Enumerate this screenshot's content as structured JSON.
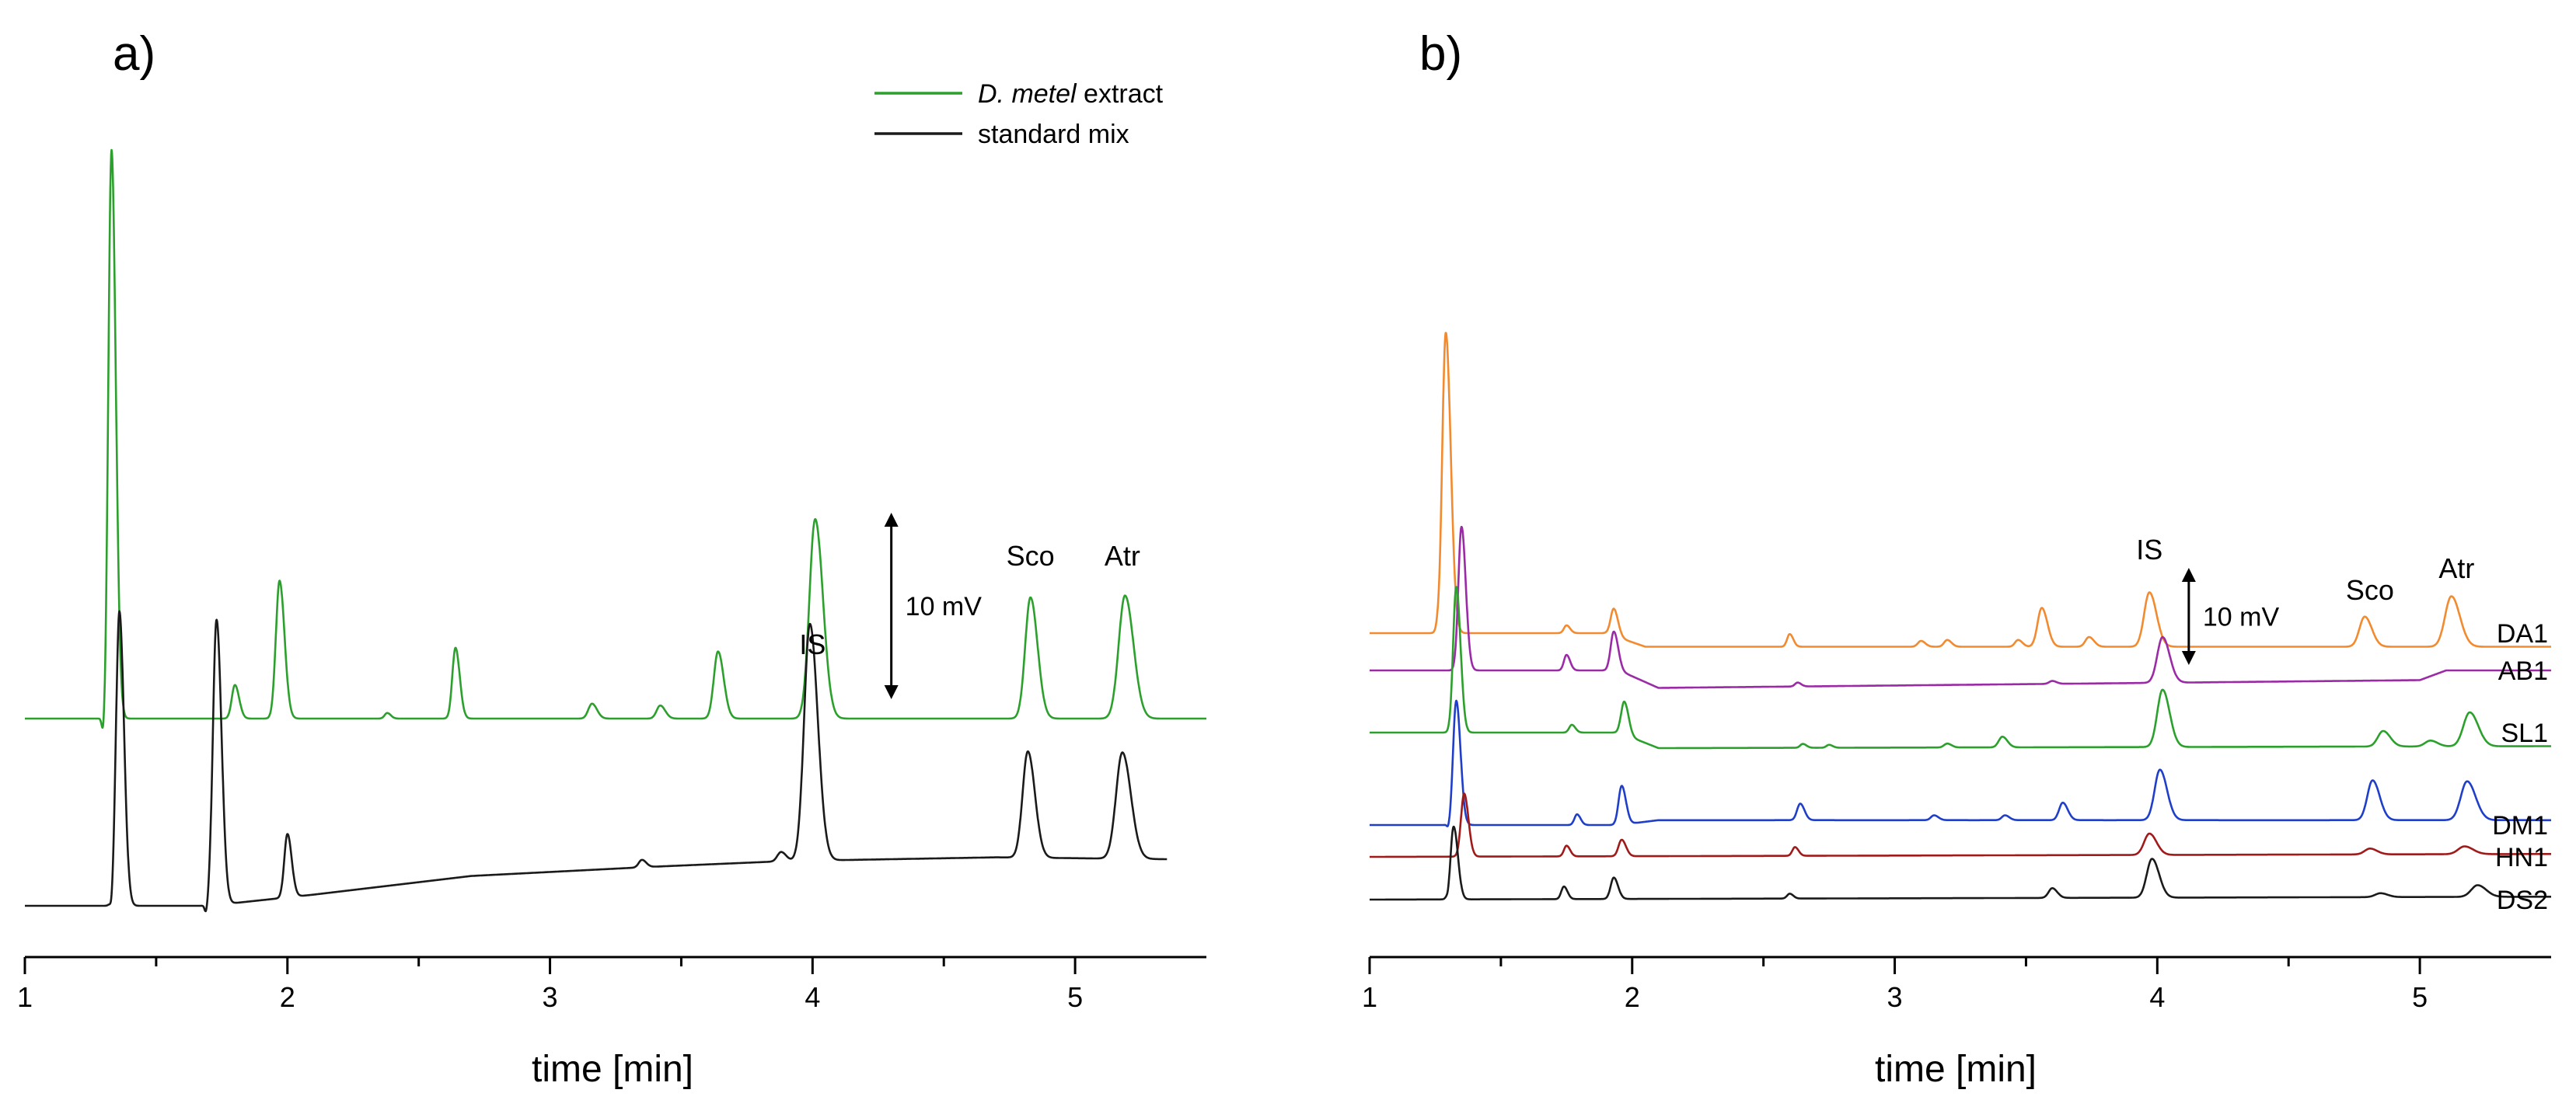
{
  "colors": {
    "green": "#2ca02c",
    "black": "#1a1a1a",
    "orange": "#f28a30",
    "purple": "#9b2aa6",
    "blue": "#1f3ec9",
    "darkred": "#a01a1a"
  },
  "chart_data": [
    {
      "type": "line",
      "panel": "a)",
      "xlabel": "time [min]",
      "xlim": [
        1,
        5.5
      ],
      "xticks": [
        1,
        2,
        3,
        4,
        5
      ],
      "ylabel": "",
      "legend": {
        "placement": "top-right",
        "entries": [
          {
            "italic": "D. metel",
            "text": " extract",
            "color": "green"
          },
          {
            "italic": "",
            "text": "standard mix",
            "color": "black"
          }
        ]
      },
      "peak_labels": [
        {
          "text": "IS",
          "x": 4.0
        },
        {
          "text": "Sco",
          "x": 4.83
        },
        {
          "text": "Atr",
          "x": 5.18
        }
      ],
      "scale_bar": {
        "text": "10 mV",
        "x": 4.3,
        "mV": 10
      },
      "series": [
        {
          "name": "D. metel extract",
          "color": "green",
          "t_start": 1.0,
          "t_end": 5.5,
          "baseline": [
            [
              1.0,
              0.0
            ],
            [
              5.5,
              0.0
            ]
          ],
          "peaks": [
            [
              1.3,
              -1.3,
              0.006
            ],
            [
              1.33,
              30.5,
              0.012
            ],
            [
              1.8,
              1.8,
              0.012
            ],
            [
              1.97,
              7.4,
              0.014
            ],
            [
              2.38,
              0.3,
              0.01
            ],
            [
              2.64,
              3.8,
              0.012
            ],
            [
              3.16,
              0.8,
              0.014
            ],
            [
              3.42,
              0.7,
              0.014
            ],
            [
              3.64,
              3.6,
              0.016
            ],
            [
              4.01,
              10.7,
              0.022
            ],
            [
              4.83,
              6.5,
              0.02
            ],
            [
              5.19,
              6.6,
              0.024
            ]
          ]
        },
        {
          "name": "standard mix",
          "color": "black",
          "t_start": 1.0,
          "t_end": 5.35,
          "baseline": [
            [
              1.0,
              0.0
            ],
            [
              1.7,
              0.0
            ],
            [
              2.1,
              0.6
            ],
            [
              2.7,
              1.6
            ],
            [
              3.4,
              2.1
            ],
            [
              3.9,
              2.4
            ],
            [
              4.7,
              2.6
            ],
            [
              5.35,
              2.5
            ]
          ],
          "peaks": [
            [
              1.33,
              -0.5,
              0.005
            ],
            [
              1.36,
              15.8,
              0.013
            ],
            [
              1.69,
              -0.5,
              0.005
            ],
            [
              1.73,
              15.3,
              0.014
            ],
            [
              2.0,
              3.4,
              0.012
            ],
            [
              3.35,
              0.4,
              0.012
            ],
            [
              3.88,
              0.5,
              0.014
            ],
            [
              3.99,
              12.7,
              0.022
            ],
            [
              4.82,
              5.7,
              0.02
            ],
            [
              5.18,
              5.7,
              0.024
            ]
          ]
        }
      ]
    },
    {
      "type": "line",
      "panel": "b)",
      "xlabel": "time [min]",
      "xlim": [
        1,
        5.5
      ],
      "xticks": [
        1,
        2,
        3,
        4,
        5
      ],
      "ylabel": "",
      "peak_labels": [
        {
          "text": "IS",
          "x": 3.97
        },
        {
          "text": "Sco",
          "x": 4.81
        },
        {
          "text": "Atr",
          "x": 5.14
        }
      ],
      "scale_bar": {
        "text": "10 mV",
        "x": 4.12,
        "mV": 10
      },
      "series": [
        {
          "name": "DA1",
          "color": "orange",
          "t_start": 1.0,
          "t_end": 5.5,
          "baseline": [
            [
              1.0,
              0.0
            ],
            [
              1.9,
              0.0
            ],
            [
              2.05,
              -1.4
            ],
            [
              5.5,
              -1.4
            ]
          ],
          "peaks": [
            [
              1.27,
              -1.1,
              0.006
            ],
            [
              1.29,
              31.0,
              0.014
            ],
            [
              1.75,
              0.8,
              0.01
            ],
            [
              1.93,
              2.8,
              0.012
            ],
            [
              2.6,
              1.3,
              0.01
            ],
            [
              3.1,
              0.6,
              0.012
            ],
            [
              3.2,
              0.7,
              0.012
            ],
            [
              3.47,
              0.7,
              0.012
            ],
            [
              3.56,
              4.0,
              0.016
            ],
            [
              3.74,
              1.0,
              0.014
            ],
            [
              3.97,
              5.6,
              0.02
            ],
            [
              4.79,
              3.1,
              0.02
            ],
            [
              5.12,
              5.2,
              0.024
            ]
          ]
        },
        {
          "name": "AB1",
          "color": "purple",
          "t_start": 1.0,
          "t_end": 5.5,
          "baseline": [
            [
              1.0,
              0.0
            ],
            [
              1.95,
              0.0
            ],
            [
              2.1,
              -1.8
            ],
            [
              5.0,
              -1.0
            ],
            [
              5.1,
              0.0
            ],
            [
              5.5,
              0.0
            ]
          ],
          "peaks": [
            [
              1.35,
              14.8,
              0.012
            ],
            [
              1.75,
              1.6,
              0.01
            ],
            [
              1.93,
              4.0,
              0.012
            ],
            [
              2.63,
              0.4,
              0.01
            ],
            [
              3.6,
              0.3,
              0.012
            ],
            [
              4.02,
              4.7,
              0.02
            ]
          ]
        },
        {
          "name": "SL1",
          "color": "green",
          "t_start": 1.0,
          "t_end": 5.5,
          "baseline": [
            [
              1.0,
              0.0
            ],
            [
              1.95,
              0.0
            ],
            [
              2.1,
              -1.6
            ],
            [
              5.5,
              -1.4
            ]
          ],
          "peaks": [
            [
              1.33,
              15.0,
              0.012
            ],
            [
              1.77,
              0.8,
              0.01
            ],
            [
              1.97,
              3.4,
              0.012
            ],
            [
              2.65,
              0.4,
              0.01
            ],
            [
              2.75,
              0.3,
              0.01
            ],
            [
              3.2,
              0.4,
              0.012
            ],
            [
              3.41,
              1.1,
              0.014
            ],
            [
              4.02,
              5.9,
              0.02
            ],
            [
              4.86,
              1.6,
              0.02
            ],
            [
              5.04,
              0.6,
              0.02
            ],
            [
              5.19,
              3.5,
              0.024
            ]
          ]
        },
        {
          "name": "DM1",
          "color": "blue",
          "t_start": 1.0,
          "t_end": 5.5,
          "baseline": [
            [
              1.0,
              0.0
            ],
            [
              1.95,
              0.0
            ],
            [
              2.1,
              0.5
            ],
            [
              5.5,
              0.5
            ]
          ],
          "peaks": [
            [
              1.3,
              -0.5,
              0.005
            ],
            [
              1.33,
              12.8,
              0.012
            ],
            [
              1.79,
              1.1,
              0.01
            ],
            [
              1.96,
              4.0,
              0.012
            ],
            [
              2.64,
              1.7,
              0.012
            ],
            [
              3.15,
              0.5,
              0.012
            ],
            [
              3.42,
              0.5,
              0.012
            ],
            [
              3.64,
              1.8,
              0.014
            ],
            [
              4.01,
              5.2,
              0.02
            ],
            [
              4.82,
              4.1,
              0.02
            ],
            [
              5.18,
              4.0,
              0.024
            ]
          ]
        },
        {
          "name": "HN1",
          "color": "darkred",
          "t_start": 1.0,
          "t_end": 5.5,
          "baseline": [
            [
              1.0,
              0.0
            ],
            [
              5.5,
              0.3
            ]
          ],
          "peaks": [
            [
              1.36,
              6.5,
              0.012
            ],
            [
              1.75,
              1.1,
              0.01
            ],
            [
              1.96,
              1.7,
              0.012
            ],
            [
              2.62,
              0.9,
              0.01
            ],
            [
              3.97,
              2.2,
              0.02
            ],
            [
              4.81,
              0.6,
              0.02
            ],
            [
              5.17,
              0.8,
              0.024
            ]
          ]
        },
        {
          "name": "DS2",
          "color": "black",
          "t_start": 1.0,
          "t_end": 5.5,
          "baseline": [
            [
              1.0,
              0.0
            ],
            [
              5.5,
              0.3
            ]
          ],
          "peaks": [
            [
              1.3,
              -0.5,
              0.005
            ],
            [
              1.32,
              7.5,
              0.012
            ],
            [
              1.74,
              1.3,
              0.01
            ],
            [
              1.93,
              2.2,
              0.012
            ],
            [
              2.6,
              0.5,
              0.01
            ],
            [
              3.6,
              1.0,
              0.014
            ],
            [
              3.98,
              4.0,
              0.02
            ],
            [
              4.85,
              0.4,
              0.02
            ],
            [
              5.22,
              1.2,
              0.024
            ]
          ]
        }
      ]
    }
  ]
}
